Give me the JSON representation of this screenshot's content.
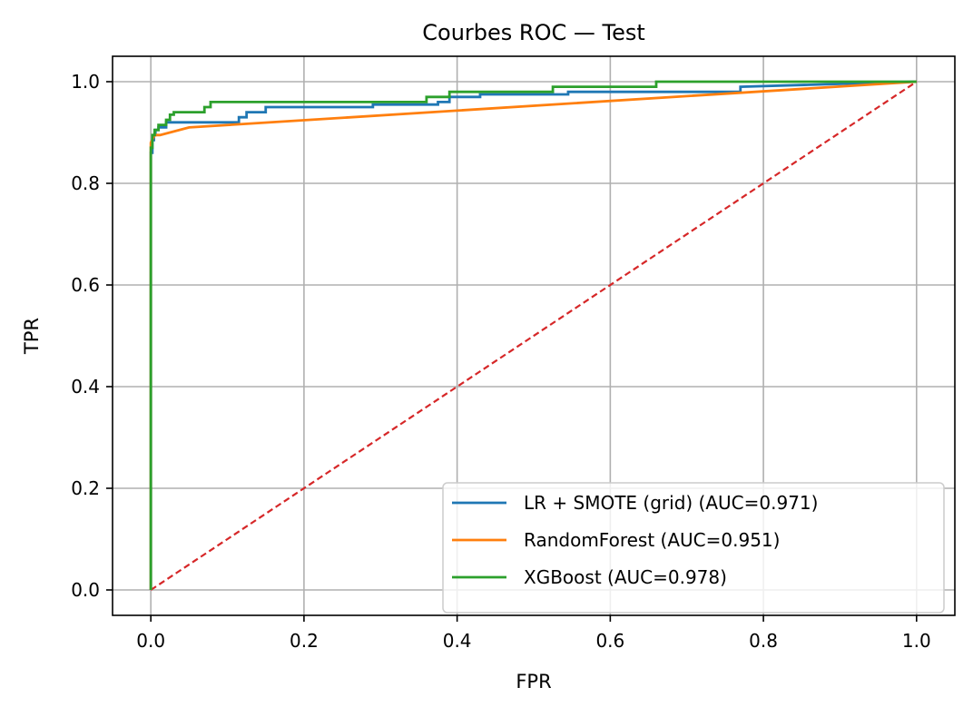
{
  "chart_data": {
    "type": "line",
    "title": "Courbes ROC — Test",
    "xlabel": "FPR",
    "ylabel": "TPR",
    "xlim": [
      -0.05,
      1.05
    ],
    "ylim": [
      -0.05,
      1.05
    ],
    "xticks": [
      0.0,
      0.2,
      0.4,
      0.6,
      0.8,
      1.0
    ],
    "xtick_labels": [
      "0.0",
      "0.2",
      "0.4",
      "0.6",
      "0.8",
      "1.0"
    ],
    "yticks": [
      0.0,
      0.2,
      0.4,
      0.6,
      0.8,
      1.0
    ],
    "ytick_labels": [
      "0.0",
      "0.2",
      "0.4",
      "0.6",
      "0.8",
      "1.0"
    ],
    "grid": true,
    "legend_position": "lower-right",
    "series": [
      {
        "name": "LR + SMOTE (grid) (AUC=0.971)",
        "color": "#1f77b4",
        "style": "solid",
        "x": [
          0.0,
          0.0,
          0.002,
          0.002,
          0.004,
          0.004,
          0.006,
          0.006,
          0.01,
          0.01,
          0.02,
          0.02,
          0.115,
          0.115,
          0.125,
          0.125,
          0.15,
          0.15,
          0.29,
          0.29,
          0.375,
          0.375,
          0.39,
          0.39,
          0.43,
          0.43,
          0.545,
          0.545,
          0.77,
          0.77,
          1.0
        ],
        "y": [
          0.0,
          0.86,
          0.86,
          0.885,
          0.885,
          0.895,
          0.895,
          0.905,
          0.905,
          0.91,
          0.91,
          0.92,
          0.92,
          0.93,
          0.93,
          0.94,
          0.94,
          0.95,
          0.95,
          0.955,
          0.955,
          0.96,
          0.96,
          0.97,
          0.97,
          0.975,
          0.975,
          0.98,
          0.98,
          0.99,
          1.0
        ]
      },
      {
        "name": "RandomForest (AUC=0.951)",
        "color": "#ff7f0e",
        "style": "solid",
        "x": [
          0.0,
          0.0,
          0.0,
          0.005,
          0.012,
          0.05,
          1.0
        ],
        "y": [
          0.0,
          0.86,
          0.88,
          0.895,
          0.895,
          0.91,
          1.0
        ]
      },
      {
        "name": "XGBoost (AUC=0.978)",
        "color": "#2ca02c",
        "style": "solid",
        "x": [
          0.0,
          0.0,
          0.002,
          0.002,
          0.005,
          0.005,
          0.01,
          0.01,
          0.02,
          0.02,
          0.025,
          0.025,
          0.03,
          0.03,
          0.07,
          0.07,
          0.078,
          0.078,
          0.36,
          0.36,
          0.39,
          0.39,
          0.525,
          0.525,
          0.66,
          0.66,
          1.0
        ],
        "y": [
          0.0,
          0.87,
          0.87,
          0.895,
          0.895,
          0.905,
          0.905,
          0.915,
          0.915,
          0.925,
          0.925,
          0.935,
          0.935,
          0.94,
          0.94,
          0.95,
          0.95,
          0.96,
          0.96,
          0.97,
          0.97,
          0.98,
          0.98,
          0.99,
          0.99,
          1.0,
          1.0
        ]
      },
      {
        "name": "",
        "color": "#d62728",
        "style": "dashed",
        "x": [
          0.0,
          1.0
        ],
        "y": [
          0.0,
          1.0
        ]
      }
    ]
  }
}
